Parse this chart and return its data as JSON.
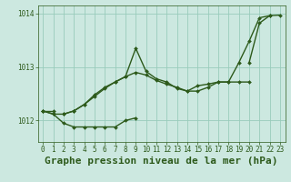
{
  "title": "Graphe pression niveau de la mer (hPa)",
  "xlim": [
    -0.5,
    23.5
  ],
  "ylim": [
    1011.6,
    1014.15
  ],
  "yticks": [
    1012,
    1013,
    1014
  ],
  "xticks": [
    0,
    1,
    2,
    3,
    4,
    5,
    6,
    7,
    8,
    9,
    10,
    11,
    12,
    13,
    14,
    15,
    16,
    17,
    18,
    19,
    20,
    21,
    22,
    23
  ],
  "bg_color": "#cce8e0",
  "line_color": "#2d5a1b",
  "line_width": 1.0,
  "marker": "D",
  "marker_size": 2.0,
  "series": [
    [
      1012.18,
      1012.18,
      null,
      null,
      null,
      null,
      null,
      null,
      null,
      null,
      null,
      null,
      null,
      null,
      null,
      null,
      null,
      null,
      null,
      null,
      null,
      null,
      null,
      null
    ],
    [
      1012.18,
      1012.12,
      1011.95,
      1011.88,
      1011.88,
      1011.88,
      1011.88,
      1011.88,
      1012.0,
      1012.05,
      null,
      null,
      null,
      null,
      null,
      null,
      null,
      null,
      null,
      null,
      null,
      null,
      null,
      null
    ],
    [
      null,
      null,
      1012.12,
      1012.18,
      1012.3,
      1012.48,
      1012.62,
      1012.72,
      1012.82,
      1013.35,
      1012.92,
      1012.78,
      1012.72,
      1012.6,
      1012.55,
      1012.55,
      1012.62,
      1012.72,
      1012.72,
      1012.72,
      1012.72,
      null,
      null,
      null
    ],
    [
      null,
      null,
      null,
      null,
      null,
      null,
      null,
      null,
      null,
      null,
      null,
      null,
      null,
      null,
      null,
      null,
      null,
      null,
      null,
      null,
      1013.08,
      1013.82,
      1013.96,
      1013.97
    ],
    [
      1012.18,
      1012.12,
      1012.12,
      1012.18,
      1012.3,
      1012.45,
      1012.6,
      1012.72,
      1012.82,
      1012.9,
      1012.85,
      1012.75,
      1012.68,
      1012.62,
      1012.55,
      1012.65,
      1012.68,
      1012.72,
      1012.72,
      1013.08,
      1013.48,
      1013.92,
      1013.96,
      null
    ]
  ],
  "tick_fontsize": 5.5,
  "tick_color": "#2d5a1b",
  "title_color": "#2d5a1b",
  "title_fontsize": 8.0,
  "grid_color": "#99ccbb",
  "grid_lw": 0.6
}
